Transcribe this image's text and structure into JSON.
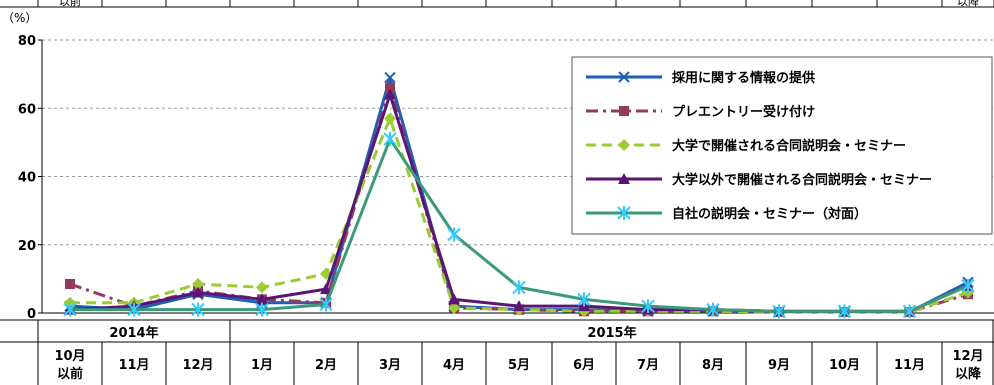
{
  "chart_data": {
    "type": "line",
    "unit_label": "（%）",
    "ylim": [
      0,
      80
    ],
    "yticks": [
      "0",
      "20",
      "40",
      "60",
      "80"
    ],
    "y_gridlines": true,
    "legend_position": "top-right",
    "top_strip_labels": [
      "以前",
      "以降"
    ],
    "year_groups": [
      {
        "label": "2014年",
        "span": [
          0,
          2
        ]
      },
      {
        "label": "2015年",
        "span": [
          3,
          14
        ]
      }
    ],
    "categories": [
      [
        "10月",
        "以前"
      ],
      [
        "11月"
      ],
      [
        "12月"
      ],
      [
        "1月"
      ],
      [
        "2月"
      ],
      [
        "3月"
      ],
      [
        "4月"
      ],
      [
        "5月"
      ],
      [
        "6月"
      ],
      [
        "7月"
      ],
      [
        "8月"
      ],
      [
        "9月"
      ],
      [
        "10月"
      ],
      [
        "11月"
      ],
      [
        "12月",
        "以降"
      ]
    ],
    "series": [
      {
        "name": "採用に関する情報の提供",
        "color": "#1f5fb4",
        "style": "solid",
        "marker": "x",
        "values": [
          2,
          1,
          5.5,
          3,
          3,
          69,
          2,
          1,
          1,
          0.5,
          0.5,
          0.3,
          0.3,
          0.3,
          9
        ]
      },
      {
        "name": "プレエントリー受け付け",
        "color": "#953a5f",
        "style": "dashdot",
        "marker": "square",
        "values": [
          8.5,
          2,
          6.5,
          4,
          3,
          66,
          1.5,
          1,
          0.5,
          0.5,
          0.5,
          0.3,
          0.3,
          0.3,
          5.5
        ]
      },
      {
        "name": "大学で開催される合同説明会・セミナー",
        "color": "#9acd32",
        "style": "dashed",
        "marker": "diamond",
        "values": [
          3,
          3,
          8.5,
          7.5,
          11.5,
          57,
          1.5,
          1,
          0.5,
          0.5,
          0.5,
          0.3,
          0.3,
          0.3,
          6
        ]
      },
      {
        "name": "大学以外で開催される合同説明会・セミナー",
        "color": "#5b1675",
        "style": "solid",
        "marker": "triangle",
        "values": [
          1,
          2,
          6,
          4,
          7,
          64,
          4,
          2,
          2,
          1,
          1,
          0.5,
          0.5,
          0.5,
          8
        ]
      },
      {
        "name": "自社の説明会・セミナー（対面）",
        "color": "#3a9a7a",
        "style": "solid",
        "marker": "asterisk",
        "values": [
          1,
          1,
          1,
          1,
          2.5,
          51,
          23,
          7.5,
          4,
          2,
          1,
          0.5,
          0.5,
          0.5,
          8
        ]
      }
    ]
  }
}
